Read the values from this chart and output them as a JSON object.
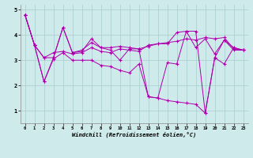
{
  "xlabel": "Windchill (Refroidissement éolien,°C)",
  "ylim": [
    0.5,
    5.2
  ],
  "xlim": [
    -0.5,
    23.5
  ],
  "yticks": [
    1,
    2,
    3,
    4,
    5
  ],
  "x_ticks": [
    0,
    1,
    2,
    3,
    4,
    5,
    6,
    7,
    8,
    9,
    10,
    11,
    12,
    13,
    14,
    15,
    16,
    17,
    18,
    19,
    20,
    21,
    22,
    23
  ],
  "bg_color": "#ceeaea",
  "line_color": "#aa00aa",
  "grid_color": "#aacccc",
  "curves": {
    "lineA": [
      4.8,
      3.6,
      3.1,
      3.3,
      3.35,
      3.25,
      3.3,
      3.5,
      3.35,
      3.3,
      3.45,
      3.4,
      3.35,
      3.6,
      3.65,
      3.7,
      3.75,
      3.85,
      3.8,
      3.9,
      3.85,
      3.9,
      3.45,
      3.4
    ],
    "lineB": [
      4.8,
      3.6,
      2.15,
      3.1,
      4.3,
      3.3,
      3.35,
      3.85,
      3.5,
      3.4,
      3.0,
      3.45,
      3.45,
      1.55,
      1.5,
      2.9,
      2.85,
      4.15,
      4.15,
      0.9,
      3.1,
      2.85,
      3.5,
      3.4
    ],
    "lineC": [
      4.8,
      3.6,
      2.15,
      3.05,
      3.3,
      3.0,
      3.0,
      3.0,
      2.8,
      2.75,
      2.6,
      2.5,
      2.85,
      1.55,
      1.5,
      1.4,
      1.35,
      1.3,
      1.25,
      0.9,
      3.1,
      3.8,
      3.4,
      3.4
    ],
    "lineD": [
      4.8,
      3.6,
      3.1,
      3.1,
      4.3,
      3.3,
      3.4,
      3.7,
      3.5,
      3.5,
      3.55,
      3.5,
      3.45,
      3.55,
      3.65,
      3.65,
      4.1,
      4.15,
      3.5,
      3.85,
      3.25,
      3.8,
      3.5,
      3.4
    ]
  }
}
